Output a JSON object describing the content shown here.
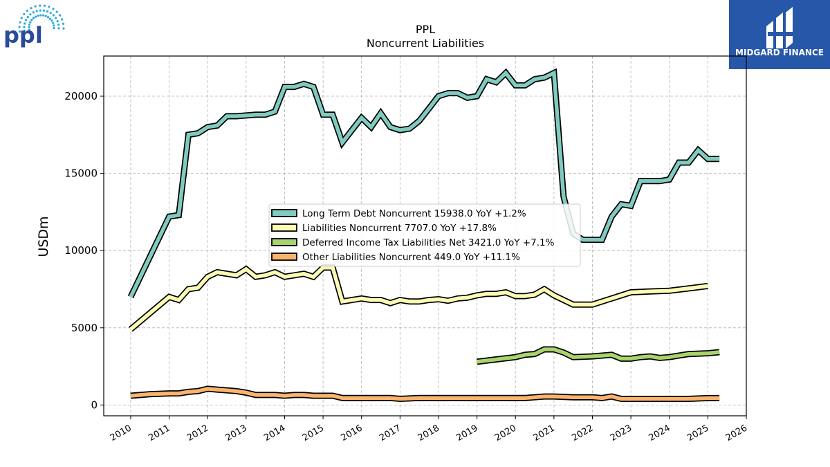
{
  "chart_data": {
    "type": "line",
    "title": "PPL",
    "subtitle": "Noncurrent  Liabilities",
    "ylabel": "USDm",
    "xlabel": "",
    "x_ticks": [
      "2010",
      "2011",
      "2012",
      "2013",
      "2014",
      "2015",
      "2016",
      "2017",
      "2018",
      "2019",
      "2020",
      "2021",
      "2022",
      "2023",
      "2024",
      "2025",
      "2026"
    ],
    "y_ticks": [
      "0",
      "5000",
      "10000",
      "15000",
      "20000"
    ],
    "xlim": [
      2009.3,
      2026.0
    ],
    "ylim": [
      -700,
      22600
    ],
    "grid": true,
    "legend_position": "center",
    "series": [
      {
        "name": "Long Term Debt Noncurrent",
        "legend": "Long Term Debt Noncurrent  15938.0 YoY +1.2%",
        "color": "#80cbc0",
        "points": [
          [
            2010.0,
            7000
          ],
          [
            2011.0,
            12200
          ],
          [
            2011.25,
            12300
          ],
          [
            2011.5,
            17500
          ],
          [
            2011.75,
            17600
          ],
          [
            2012.0,
            18000
          ],
          [
            2012.25,
            18100
          ],
          [
            2012.5,
            18700
          ],
          [
            2012.75,
            18700
          ],
          [
            2013.0,
            18750
          ],
          [
            2013.25,
            18800
          ],
          [
            2013.5,
            18800
          ],
          [
            2013.75,
            19000
          ],
          [
            2014.0,
            20600
          ],
          [
            2014.25,
            20600
          ],
          [
            2014.5,
            20800
          ],
          [
            2014.75,
            20600
          ],
          [
            2015.0,
            18800
          ],
          [
            2015.25,
            18800
          ],
          [
            2015.5,
            17000
          ],
          [
            2015.75,
            17800
          ],
          [
            2016.0,
            18600
          ],
          [
            2016.25,
            18000
          ],
          [
            2016.5,
            18900
          ],
          [
            2016.75,
            18000
          ],
          [
            2017.0,
            17800
          ],
          [
            2017.25,
            17900
          ],
          [
            2017.5,
            18400
          ],
          [
            2017.75,
            19200
          ],
          [
            2018.0,
            20000
          ],
          [
            2018.25,
            20200
          ],
          [
            2018.5,
            20200
          ],
          [
            2018.75,
            19900
          ],
          [
            2019.0,
            20000
          ],
          [
            2019.25,
            21100
          ],
          [
            2019.5,
            20900
          ],
          [
            2019.75,
            21500
          ],
          [
            2020.0,
            20700
          ],
          [
            2020.25,
            20700
          ],
          [
            2020.5,
            21100
          ],
          [
            2020.75,
            21200
          ],
          [
            2021.0,
            21500
          ],
          [
            2021.25,
            13500
          ],
          [
            2021.5,
            11100
          ],
          [
            2021.75,
            10700
          ],
          [
            2022.0,
            10700
          ],
          [
            2022.25,
            10700
          ],
          [
            2022.5,
            12200
          ],
          [
            2022.75,
            13000
          ],
          [
            2023.0,
            12900
          ],
          [
            2023.25,
            14500
          ],
          [
            2023.5,
            14500
          ],
          [
            2023.75,
            14500
          ],
          [
            2024.0,
            14600
          ],
          [
            2024.25,
            15700
          ],
          [
            2024.5,
            15700
          ],
          [
            2024.75,
            16500
          ],
          [
            2025.0,
            15938
          ],
          [
            2025.3,
            15938
          ]
        ]
      },
      {
        "name": "Liabilities Noncurrent",
        "legend": "Liabilities Noncurrent  7707.0 YoY +17.8%",
        "color": "#fdfcb4",
        "points": [
          [
            2010.0,
            4900
          ],
          [
            2011.0,
            7000
          ],
          [
            2011.25,
            6800
          ],
          [
            2011.5,
            7500
          ],
          [
            2011.75,
            7600
          ],
          [
            2012.0,
            8300
          ],
          [
            2012.25,
            8600
          ],
          [
            2012.5,
            8500
          ],
          [
            2012.75,
            8400
          ],
          [
            2013.0,
            8800
          ],
          [
            2013.25,
            8300
          ],
          [
            2013.5,
            8400
          ],
          [
            2013.75,
            8600
          ],
          [
            2014.0,
            8300
          ],
          [
            2014.25,
            8400
          ],
          [
            2014.5,
            8500
          ],
          [
            2014.75,
            8300
          ],
          [
            2015.0,
            8900
          ],
          [
            2015.25,
            8900
          ],
          [
            2015.5,
            6700
          ],
          [
            2015.75,
            6800
          ],
          [
            2016.0,
            6900
          ],
          [
            2016.25,
            6800
          ],
          [
            2016.5,
            6800
          ],
          [
            2016.75,
            6600
          ],
          [
            2017.0,
            6800
          ],
          [
            2017.25,
            6700
          ],
          [
            2017.5,
            6700
          ],
          [
            2017.75,
            6800
          ],
          [
            2018.0,
            6850
          ],
          [
            2018.25,
            6750
          ],
          [
            2018.5,
            6900
          ],
          [
            2018.75,
            6950
          ],
          [
            2019.0,
            7100
          ],
          [
            2019.25,
            7200
          ],
          [
            2019.5,
            7200
          ],
          [
            2019.75,
            7300
          ],
          [
            2020.0,
            7050
          ],
          [
            2020.25,
            7050
          ],
          [
            2020.5,
            7150
          ],
          [
            2020.75,
            7500
          ],
          [
            2021.0,
            7100
          ],
          [
            2021.5,
            6500
          ],
          [
            2022.0,
            6500
          ],
          [
            2022.5,
            6900
          ],
          [
            2023.0,
            7300
          ],
          [
            2023.5,
            7350
          ],
          [
            2024.0,
            7400
          ],
          [
            2024.5,
            7550
          ],
          [
            2025.0,
            7707
          ]
        ]
      },
      {
        "name": "Deferred Income Tax Liabilities Net",
        "legend": "Deferred Income Tax Liabilities Net  3421.0 YoY +7.1%",
        "color": "#a9d46c",
        "points": [
          [
            2019.0,
            2800
          ],
          [
            2019.5,
            2950
          ],
          [
            2020.0,
            3100
          ],
          [
            2020.25,
            3250
          ],
          [
            2020.5,
            3300
          ],
          [
            2020.75,
            3600
          ],
          [
            2021.0,
            3600
          ],
          [
            2021.25,
            3400
          ],
          [
            2021.5,
            3100
          ],
          [
            2022.0,
            3150
          ],
          [
            2022.25,
            3200
          ],
          [
            2022.5,
            3250
          ],
          [
            2022.75,
            3000
          ],
          [
            2023.0,
            3000
          ],
          [
            2023.25,
            3100
          ],
          [
            2023.5,
            3150
          ],
          [
            2023.75,
            3050
          ],
          [
            2024.0,
            3100
          ],
          [
            2024.5,
            3300
          ],
          [
            2025.0,
            3350
          ],
          [
            2025.3,
            3421
          ]
        ]
      },
      {
        "name": "Other Liabilities Noncurrent",
        "legend": "Other Liabilities Noncurrent  449.0 YoY +11.1%",
        "color": "#fbb46e",
        "points": [
          [
            2010.0,
            600
          ],
          [
            2010.5,
            700
          ],
          [
            2011.0,
            750
          ],
          [
            2011.25,
            750
          ],
          [
            2011.5,
            850
          ],
          [
            2011.75,
            900
          ],
          [
            2012.0,
            1050
          ],
          [
            2012.25,
            1000
          ],
          [
            2012.5,
            950
          ],
          [
            2012.75,
            900
          ],
          [
            2013.0,
            800
          ],
          [
            2013.25,
            650
          ],
          [
            2013.5,
            650
          ],
          [
            2013.75,
            650
          ],
          [
            2014.0,
            600
          ],
          [
            2014.25,
            650
          ],
          [
            2014.5,
            650
          ],
          [
            2014.75,
            600
          ],
          [
            2015.0,
            600
          ],
          [
            2015.25,
            600
          ],
          [
            2015.5,
            450
          ],
          [
            2015.75,
            450
          ],
          [
            2016.0,
            450
          ],
          [
            2016.25,
            450
          ],
          [
            2016.5,
            450
          ],
          [
            2016.75,
            450
          ],
          [
            2017.0,
            400
          ],
          [
            2017.5,
            450
          ],
          [
            2018.0,
            450
          ],
          [
            2018.5,
            450
          ],
          [
            2019.0,
            450
          ],
          [
            2019.5,
            450
          ],
          [
            2020.0,
            450
          ],
          [
            2020.25,
            450
          ],
          [
            2020.5,
            500
          ],
          [
            2020.75,
            550
          ],
          [
            2021.0,
            550
          ],
          [
            2021.5,
            500
          ],
          [
            2022.0,
            500
          ],
          [
            2022.25,
            450
          ],
          [
            2022.5,
            550
          ],
          [
            2022.75,
            400
          ],
          [
            2023.0,
            400
          ],
          [
            2023.5,
            400
          ],
          [
            2024.0,
            400
          ],
          [
            2024.5,
            400
          ],
          [
            2025.0,
            449
          ],
          [
            2025.3,
            449
          ]
        ]
      }
    ]
  },
  "branding": {
    "left_logo_text": "ppl",
    "left_logo_color": "#2b4a9c",
    "left_logo_ray_color": "#29a8e0",
    "right_logo_text": "MIDGARD FINANCE",
    "right_logo_bg": "#2757a8"
  }
}
